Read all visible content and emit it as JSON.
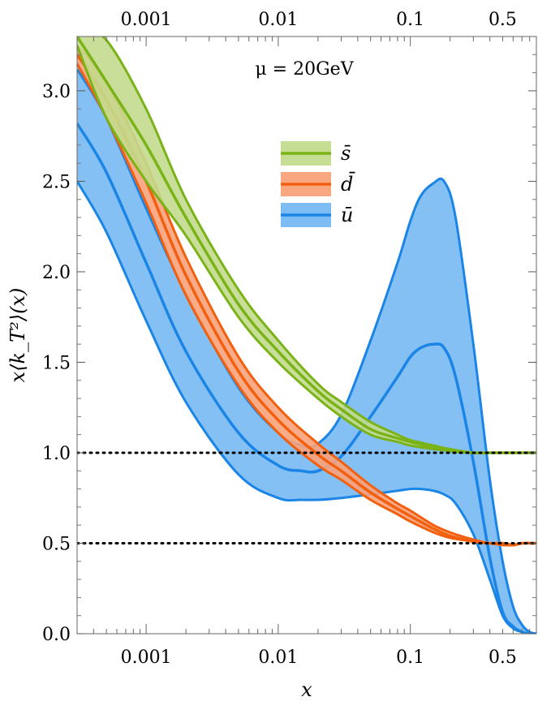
{
  "chart_data": {
    "type": "area",
    "xlabel": "x",
    "ylabel": "x⟨k_T²⟩(x)",
    "x_scale": "log",
    "xlim": [
      0.0003,
      0.9
    ],
    "ylim": [
      0.0,
      3.3
    ],
    "x_ticks": [
      {
        "value": 0.001,
        "label": "0.001"
      },
      {
        "value": 0.01,
        "label": "0.01"
      },
      {
        "value": 0.1,
        "label": "0.1"
      },
      {
        "value": 0.5,
        "label": "0.5"
      }
    ],
    "y_ticks": [
      {
        "value": 0.0,
        "label": "0.0"
      },
      {
        "value": 0.5,
        "label": "0.5"
      },
      {
        "value": 1.0,
        "label": "1.0"
      },
      {
        "value": 1.5,
        "label": "1.5"
      },
      {
        "value": 2.0,
        "label": "2.0"
      },
      {
        "value": 2.5,
        "label": "2.5"
      },
      {
        "value": 3.0,
        "label": "3.0"
      }
    ],
    "annotation": "μ = 20GeV",
    "reference_lines": [
      1.0,
      0.5
    ],
    "legend_position": "upper-center",
    "grid": false,
    "series": [
      {
        "name": "ū",
        "color": "#1a85e6",
        "fill": "#77b9f2",
        "x": [
          0.0003,
          0.0005,
          0.001,
          0.002,
          0.005,
          0.01,
          0.015,
          0.02,
          0.03,
          0.05,
          0.08,
          0.1,
          0.12,
          0.15,
          0.18,
          0.22,
          0.3,
          0.4,
          0.5,
          0.6,
          0.7,
          0.8,
          0.9
        ],
        "upper": [
          3.12,
          2.85,
          2.35,
          1.88,
          1.36,
          1.11,
          1.04,
          1.05,
          1.21,
          1.62,
          2.05,
          2.28,
          2.42,
          2.49,
          2.5,
          2.3,
          1.6,
          0.85,
          0.4,
          0.15,
          0.05,
          0.01,
          0.0
        ],
        "center": [
          2.82,
          2.55,
          2.05,
          1.56,
          1.11,
          0.93,
          0.9,
          0.9,
          0.98,
          1.2,
          1.42,
          1.53,
          1.58,
          1.6,
          1.58,
          1.42,
          0.95,
          0.42,
          0.12,
          0.04,
          0.01,
          0.0,
          0.0
        ],
        "lower": [
          2.5,
          2.22,
          1.73,
          1.28,
          0.88,
          0.75,
          0.74,
          0.74,
          0.75,
          0.77,
          0.79,
          0.8,
          0.8,
          0.79,
          0.77,
          0.72,
          0.55,
          0.3,
          0.1,
          0.03,
          0.01,
          0.0,
          0.0
        ]
      },
      {
        "name": "d̄",
        "color": "#f2600f",
        "fill": "#f9a27a",
        "x": [
          0.0003,
          0.0005,
          0.001,
          0.002,
          0.005,
          0.01,
          0.02,
          0.03,
          0.05,
          0.08,
          0.1,
          0.15,
          0.2,
          0.3,
          0.4,
          0.5,
          0.6,
          0.7,
          0.9
        ],
        "upper": [
          3.25,
          3.05,
          2.6,
          2.08,
          1.53,
          1.25,
          1.05,
          0.95,
          0.82,
          0.72,
          0.68,
          0.6,
          0.56,
          0.52,
          0.5,
          0.5,
          0.49,
          0.5,
          0.5
        ],
        "center": [
          3.2,
          2.95,
          2.5,
          1.98,
          1.45,
          1.18,
          0.99,
          0.9,
          0.78,
          0.69,
          0.65,
          0.58,
          0.54,
          0.51,
          0.5,
          0.5,
          0.49,
          0.5,
          0.5
        ],
        "lower": [
          3.15,
          2.85,
          2.38,
          1.87,
          1.37,
          1.11,
          0.93,
          0.85,
          0.74,
          0.66,
          0.62,
          0.56,
          0.53,
          0.51,
          0.5,
          0.49,
          0.49,
          0.5,
          0.5
        ]
      },
      {
        "name": "s̄",
        "color": "#7ab317",
        "fill": "#c3dc8e",
        "x": [
          0.0003,
          0.0005,
          0.001,
          0.002,
          0.005,
          0.01,
          0.02,
          0.03,
          0.05,
          0.08,
          0.1,
          0.15,
          0.2,
          0.3,
          0.4,
          0.5,
          0.7,
          0.9
        ],
        "upper": [
          3.35,
          3.28,
          2.9,
          2.4,
          1.9,
          1.62,
          1.38,
          1.28,
          1.17,
          1.1,
          1.07,
          1.04,
          1.02,
          1.0,
          1.0,
          1.0,
          1.0,
          1.0
        ],
        "center": [
          3.3,
          3.05,
          2.7,
          2.3,
          1.82,
          1.56,
          1.34,
          1.24,
          1.13,
          1.08,
          1.06,
          1.03,
          1.01,
          1.0,
          1.0,
          1.0,
          1.0,
          1.0
        ],
        "lower": [
          3.25,
          2.85,
          2.5,
          2.2,
          1.75,
          1.5,
          1.3,
          1.2,
          1.1,
          1.06,
          1.04,
          1.02,
          1.01,
          1.0,
          1.0,
          1.0,
          1.0,
          1.0
        ]
      }
    ]
  }
}
